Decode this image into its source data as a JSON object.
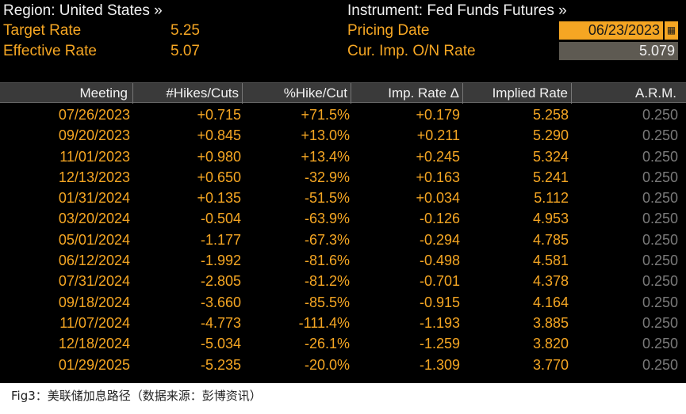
{
  "header": {
    "region_label": "Region: United States »",
    "instrument_label": "Instrument: Fed Funds Futures »",
    "target_rate_label": "Target Rate",
    "target_rate_value": "5.25",
    "pricing_date_label": "Pricing Date",
    "pricing_date_value": "06/23/2023",
    "effective_rate_label": "Effective Rate",
    "effective_rate_value": "5.07",
    "cur_imp_label": "Cur. Imp. O/N Rate",
    "cur_imp_value": "5.079"
  },
  "table": {
    "columns": [
      "Meeting",
      "#Hikes/Cuts",
      "%Hike/Cut",
      "Imp. Rate Δ",
      "Implied Rate",
      "A.R.M."
    ],
    "rows": [
      {
        "meeting": "07/26/2023",
        "hikes": "+0.715",
        "pct": "+71.5%",
        "delta": "+0.179",
        "implied": "5.258",
        "arm": "0.250"
      },
      {
        "meeting": "09/20/2023",
        "hikes": "+0.845",
        "pct": "+13.0%",
        "delta": "+0.211",
        "implied": "5.290",
        "arm": "0.250"
      },
      {
        "meeting": "11/01/2023",
        "hikes": "+0.980",
        "pct": "+13.4%",
        "delta": "+0.245",
        "implied": "5.324",
        "arm": "0.250"
      },
      {
        "meeting": "12/13/2023",
        "hikes": "+0.650",
        "pct": "-32.9%",
        "delta": "+0.163",
        "implied": "5.241",
        "arm": "0.250"
      },
      {
        "meeting": "01/31/2024",
        "hikes": "+0.135",
        "pct": "-51.5%",
        "delta": "+0.034",
        "implied": "5.112",
        "arm": "0.250"
      },
      {
        "meeting": "03/20/2024",
        "hikes": "-0.504",
        "pct": "-63.9%",
        "delta": "-0.126",
        "implied": "4.953",
        "arm": "0.250"
      },
      {
        "meeting": "05/01/2024",
        "hikes": "-1.177",
        "pct": "-67.3%",
        "delta": "-0.294",
        "implied": "4.785",
        "arm": "0.250"
      },
      {
        "meeting": "06/12/2024",
        "hikes": "-1.992",
        "pct": "-81.6%",
        "delta": "-0.498",
        "implied": "4.581",
        "arm": "0.250"
      },
      {
        "meeting": "07/31/2024",
        "hikes": "-2.805",
        "pct": "-81.2%",
        "delta": "-0.701",
        "implied": "4.378",
        "arm": "0.250"
      },
      {
        "meeting": "09/18/2024",
        "hikes": "-3.660",
        "pct": "-85.5%",
        "delta": "-0.915",
        "implied": "4.164",
        "arm": "0.250"
      },
      {
        "meeting": "11/07/2024",
        "hikes": "-4.773",
        "pct": "-111.4%",
        "delta": "-1.193",
        "implied": "3.885",
        "arm": "0.250"
      },
      {
        "meeting": "12/18/2024",
        "hikes": "-5.034",
        "pct": "-26.1%",
        "delta": "-1.259",
        "implied": "3.820",
        "arm": "0.250"
      },
      {
        "meeting": "01/29/2025",
        "hikes": "-5.235",
        "pct": "-20.0%",
        "delta": "-1.309",
        "implied": "3.770",
        "arm": "0.250"
      }
    ]
  },
  "caption": "Fig3：美联储加息路径（数据来源：彭博资讯）",
  "colors": {
    "background": "#000000",
    "amber": "#f5a623",
    "header_text": "#f2f2f2",
    "arm_text": "#7a7a7a"
  }
}
